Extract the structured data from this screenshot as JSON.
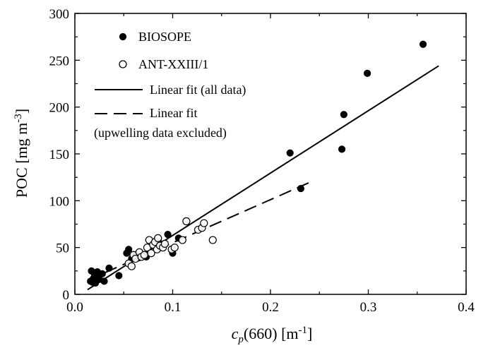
{
  "chart_data": {
    "type": "scatter",
    "xlabel": {
      "main": "c",
      "sub": "p",
      "rest": "(660)  [m",
      "sup": "-1",
      "end": "]"
    },
    "ylabel": {
      "main": "POC  [mg m",
      "sup": "-3",
      "end": "]"
    },
    "xlim": [
      0.0,
      0.4
    ],
    "ylim": [
      0,
      300
    ],
    "xticks": [
      "0.0",
      "0.1",
      "0.2",
      "0.3",
      "0.4"
    ],
    "yticks": [
      "0",
      "50",
      "100",
      "150",
      "200",
      "250",
      "300"
    ],
    "grid": false,
    "legend_position": "top-left",
    "series": [
      {
        "name": "BIOSOPE",
        "marker": "filled-circle",
        "points": [
          [
            0.016,
            14
          ],
          [
            0.017,
            25
          ],
          [
            0.018,
            13
          ],
          [
            0.019,
            17
          ],
          [
            0.02,
            22
          ],
          [
            0.021,
            12
          ],
          [
            0.023,
            24
          ],
          [
            0.025,
            16
          ],
          [
            0.028,
            22
          ],
          [
            0.03,
            14
          ],
          [
            0.035,
            28
          ],
          [
            0.045,
            20
          ],
          [
            0.053,
            44
          ],
          [
            0.055,
            48
          ],
          [
            0.058,
            38
          ],
          [
            0.062,
            42
          ],
          [
            0.065,
            39
          ],
          [
            0.07,
            41
          ],
          [
            0.073,
            40
          ],
          [
            0.086,
            55
          ],
          [
            0.095,
            64
          ],
          [
            0.1,
            44
          ],
          [
            0.106,
            60
          ],
          [
            0.22,
            151
          ],
          [
            0.231,
            113
          ],
          [
            0.273,
            155
          ],
          [
            0.275,
            192
          ],
          [
            0.299,
            236
          ],
          [
            0.356,
            267
          ]
        ]
      },
      {
        "name": "ANT-XXIII/1",
        "marker": "open-circle",
        "points": [
          [
            0.055,
            33
          ],
          [
            0.058,
            30
          ],
          [
            0.06,
            42
          ],
          [
            0.062,
            38
          ],
          [
            0.066,
            45
          ],
          [
            0.068,
            40
          ],
          [
            0.071,
            42
          ],
          [
            0.074,
            50
          ],
          [
            0.076,
            58
          ],
          [
            0.078,
            44
          ],
          [
            0.08,
            53
          ],
          [
            0.082,
            56
          ],
          [
            0.084,
            48
          ],
          [
            0.085,
            60
          ],
          [
            0.087,
            52
          ],
          [
            0.09,
            50
          ],
          [
            0.092,
            54
          ],
          [
            0.099,
            48
          ],
          [
            0.102,
            50
          ],
          [
            0.11,
            58
          ],
          [
            0.114,
            78
          ],
          [
            0.126,
            69
          ],
          [
            0.13,
            71
          ],
          [
            0.132,
            76
          ],
          [
            0.141,
            58
          ]
        ]
      }
    ],
    "fits": [
      {
        "name": "Linear fit (all data)",
        "style": "solid",
        "x": [
          0.013,
          0.372
        ],
        "y": [
          5,
          244
        ]
      },
      {
        "name": "Linear fit",
        "subtitle": "(upwelling data excluded)",
        "style": "dashed",
        "x": [
          0.013,
          0.241
        ],
        "y": [
          15,
          120
        ]
      }
    ]
  }
}
